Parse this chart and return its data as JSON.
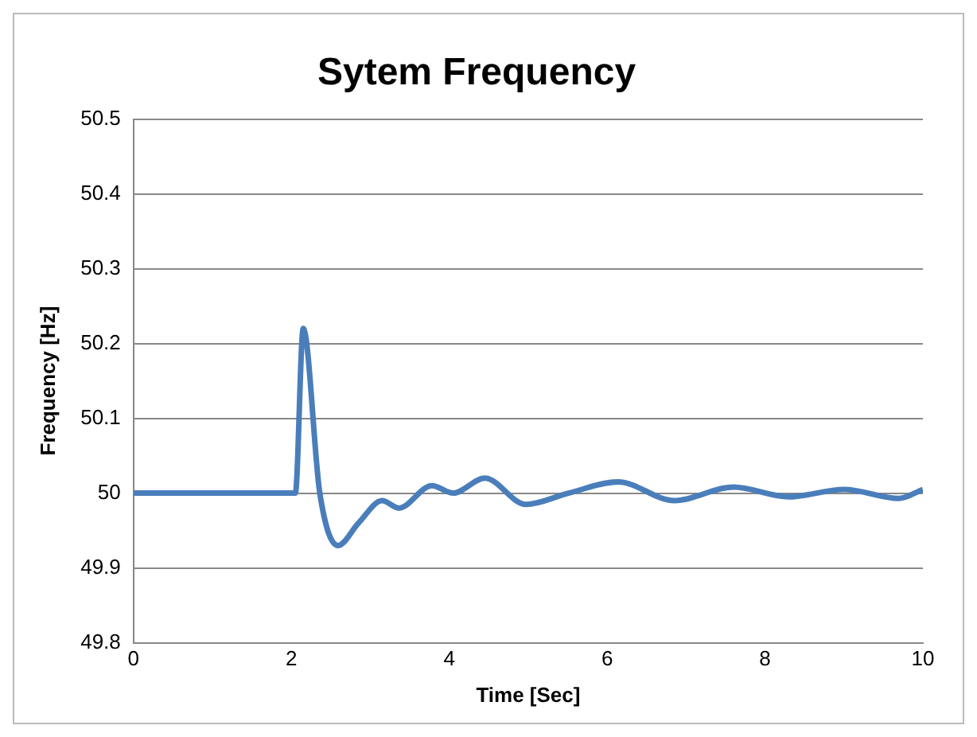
{
  "chart_data": {
    "type": "line",
    "title": "Sytem Frequency",
    "xlabel": "Time [Sec]",
    "ylabel": "Frequency [Hz]",
    "series": [
      {
        "color": "#4a7ebb",
        "x": [
          0,
          2.05,
          2.15,
          2.36,
          2.59,
          2.85,
          3.15,
          3.36,
          3.78,
          4.05,
          4.45,
          4.97,
          5.51,
          6.14,
          6.85,
          7.6,
          8.3,
          9.0,
          9.7,
          10
        ],
        "values": [
          50,
          50,
          50.22,
          50,
          49.93,
          49.96,
          49.99,
          49.98,
          50.01,
          50.0,
          50.02,
          49.985,
          50.0,
          50.015,
          49.99,
          50.008,
          49.995,
          50.005,
          49.993,
          50.005
        ]
      }
    ],
    "xlim": [
      0,
      10
    ],
    "xticks": [
      0,
      2,
      4,
      6,
      8,
      10
    ],
    "ylim": [
      49.8,
      50.5
    ],
    "yticks": [
      49.8,
      49.9,
      50,
      50.1,
      50.2,
      50.3,
      50.4,
      50.5
    ],
    "grid": "y",
    "legend": false,
    "marker": "none",
    "line_style": "solid"
  }
}
